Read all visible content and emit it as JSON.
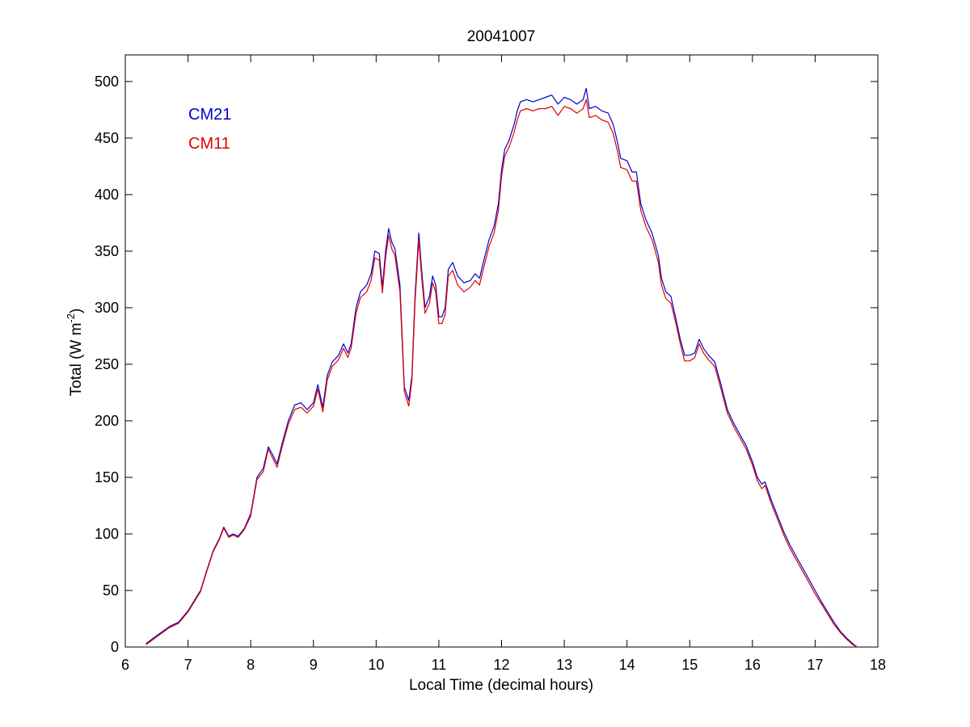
{
  "chart_data": {
    "type": "line",
    "title": "20041007",
    "xlabel": "Local Time (decimal hours)",
    "ylabel_main": "Total (W m",
    "ylabel_sup": "-2",
    "ylabel_close": ")",
    "xlim": [
      6,
      18
    ],
    "ylim": [
      0,
      520
    ],
    "xticks": [
      6,
      7,
      8,
      9,
      10,
      11,
      12,
      13,
      14,
      15,
      16,
      17,
      18
    ],
    "yticks": [
      0,
      50,
      100,
      150,
      200,
      250,
      300,
      350,
      400,
      450,
      500
    ],
    "grid": false,
    "legend_position": "top-left",
    "series": [
      {
        "name": "CM21",
        "color": "#0000cc",
        "points": [
          [
            6.33,
            3
          ],
          [
            6.5,
            10
          ],
          [
            6.7,
            18
          ],
          [
            6.85,
            22
          ],
          [
            7.0,
            32
          ],
          [
            7.2,
            50
          ],
          [
            7.3,
            68
          ],
          [
            7.4,
            85
          ],
          [
            7.5,
            96
          ],
          [
            7.57,
            106
          ],
          [
            7.65,
            98
          ],
          [
            7.72,
            100
          ],
          [
            7.8,
            98
          ],
          [
            7.9,
            105
          ],
          [
            8.0,
            118
          ],
          [
            8.1,
            150
          ],
          [
            8.2,
            158
          ],
          [
            8.28,
            177
          ],
          [
            8.35,
            170
          ],
          [
            8.42,
            162
          ],
          [
            8.5,
            180
          ],
          [
            8.6,
            200
          ],
          [
            8.7,
            214
          ],
          [
            8.8,
            216
          ],
          [
            8.9,
            210
          ],
          [
            9.0,
            216
          ],
          [
            9.07,
            232
          ],
          [
            9.15,
            212
          ],
          [
            9.22,
            240
          ],
          [
            9.3,
            252
          ],
          [
            9.4,
            258
          ],
          [
            9.48,
            268
          ],
          [
            9.55,
            260
          ],
          [
            9.6,
            268
          ],
          [
            9.68,
            300
          ],
          [
            9.75,
            314
          ],
          [
            9.85,
            320
          ],
          [
            9.92,
            330
          ],
          [
            9.98,
            350
          ],
          [
            10.05,
            348
          ],
          [
            10.1,
            318
          ],
          [
            10.15,
            350
          ],
          [
            10.2,
            370
          ],
          [
            10.25,
            358
          ],
          [
            10.3,
            352
          ],
          [
            10.38,
            320
          ],
          [
            10.45,
            230
          ],
          [
            10.52,
            218
          ],
          [
            10.57,
            240
          ],
          [
            10.62,
            310
          ],
          [
            10.68,
            366
          ],
          [
            10.73,
            330
          ],
          [
            10.78,
            300
          ],
          [
            10.85,
            310
          ],
          [
            10.9,
            328
          ],
          [
            10.95,
            320
          ],
          [
            11.0,
            292
          ],
          [
            11.05,
            292
          ],
          [
            11.1,
            300
          ],
          [
            11.15,
            334
          ],
          [
            11.22,
            340
          ],
          [
            11.3,
            328
          ],
          [
            11.4,
            322
          ],
          [
            11.5,
            324
          ],
          [
            11.58,
            330
          ],
          [
            11.65,
            326
          ],
          [
            11.7,
            338
          ],
          [
            11.8,
            360
          ],
          [
            11.88,
            372
          ],
          [
            11.95,
            392
          ],
          [
            12.0,
            422
          ],
          [
            12.05,
            440
          ],
          [
            12.12,
            448
          ],
          [
            12.2,
            462
          ],
          [
            12.25,
            474
          ],
          [
            12.3,
            482
          ],
          [
            12.4,
            484
          ],
          [
            12.5,
            482
          ],
          [
            12.6,
            484
          ],
          [
            12.7,
            486
          ],
          [
            12.8,
            488
          ],
          [
            12.9,
            480
          ],
          [
            13.0,
            486
          ],
          [
            13.1,
            484
          ],
          [
            13.2,
            480
          ],
          [
            13.3,
            484
          ],
          [
            13.35,
            494
          ],
          [
            13.4,
            476
          ],
          [
            13.5,
            478
          ],
          [
            13.6,
            474
          ],
          [
            13.7,
            472
          ],
          [
            13.78,
            462
          ],
          [
            13.85,
            446
          ],
          [
            13.9,
            432
          ],
          [
            14.0,
            430
          ],
          [
            14.08,
            420
          ],
          [
            14.15,
            420
          ],
          [
            14.22,
            392
          ],
          [
            14.3,
            378
          ],
          [
            14.4,
            366
          ],
          [
            14.5,
            346
          ],
          [
            14.55,
            326
          ],
          [
            14.62,
            314
          ],
          [
            14.7,
            310
          ],
          [
            14.78,
            290
          ],
          [
            14.85,
            272
          ],
          [
            14.92,
            258
          ],
          [
            15.0,
            258
          ],
          [
            15.08,
            260
          ],
          [
            15.15,
            272
          ],
          [
            15.22,
            264
          ],
          [
            15.3,
            258
          ],
          [
            15.4,
            252
          ],
          [
            15.5,
            232
          ],
          [
            15.6,
            210
          ],
          [
            15.7,
            198
          ],
          [
            15.8,
            188
          ],
          [
            15.9,
            178
          ],
          [
            16.0,
            164
          ],
          [
            16.08,
            150
          ],
          [
            16.15,
            144
          ],
          [
            16.2,
            146
          ],
          [
            16.3,
            130
          ],
          [
            16.4,
            116
          ],
          [
            16.5,
            102
          ],
          [
            16.6,
            90
          ],
          [
            16.7,
            80
          ],
          [
            16.8,
            70
          ],
          [
            16.9,
            60
          ],
          [
            17.0,
            50
          ],
          [
            17.1,
            40
          ],
          [
            17.2,
            31
          ],
          [
            17.3,
            22
          ],
          [
            17.4,
            14
          ],
          [
            17.5,
            8
          ],
          [
            17.6,
            3
          ],
          [
            17.67,
            0
          ]
        ]
      },
      {
        "name": "CM11",
        "color": "#e00000",
        "points": [
          [
            6.33,
            2
          ],
          [
            6.5,
            9
          ],
          [
            6.7,
            17
          ],
          [
            6.85,
            21
          ],
          [
            7.0,
            31
          ],
          [
            7.2,
            49
          ],
          [
            7.3,
            67
          ],
          [
            7.4,
            84
          ],
          [
            7.5,
            95
          ],
          [
            7.57,
            105
          ],
          [
            7.65,
            97
          ],
          [
            7.72,
            99
          ],
          [
            7.8,
            97
          ],
          [
            7.9,
            104
          ],
          [
            8.0,
            116
          ],
          [
            8.1,
            148
          ],
          [
            8.2,
            155
          ],
          [
            8.28,
            175
          ],
          [
            8.35,
            167
          ],
          [
            8.42,
            159
          ],
          [
            8.5,
            177
          ],
          [
            8.6,
            197
          ],
          [
            8.7,
            210
          ],
          [
            8.8,
            212
          ],
          [
            8.9,
            207
          ],
          [
            9.0,
            213
          ],
          [
            9.07,
            228
          ],
          [
            9.15,
            208
          ],
          [
            9.22,
            236
          ],
          [
            9.3,
            248
          ],
          [
            9.4,
            254
          ],
          [
            9.48,
            264
          ],
          [
            9.55,
            256
          ],
          [
            9.6,
            264
          ],
          [
            9.68,
            295
          ],
          [
            9.75,
            309
          ],
          [
            9.85,
            314
          ],
          [
            9.92,
            324
          ],
          [
            9.98,
            344
          ],
          [
            10.05,
            342
          ],
          [
            10.1,
            313
          ],
          [
            10.15,
            344
          ],
          [
            10.2,
            364
          ],
          [
            10.25,
            352
          ],
          [
            10.3,
            346
          ],
          [
            10.38,
            314
          ],
          [
            10.45,
            226
          ],
          [
            10.52,
            213
          ],
          [
            10.57,
            236
          ],
          [
            10.62,
            304
          ],
          [
            10.68,
            360
          ],
          [
            10.73,
            324
          ],
          [
            10.78,
            295
          ],
          [
            10.85,
            304
          ],
          [
            10.9,
            322
          ],
          [
            10.95,
            314
          ],
          [
            11.0,
            286
          ],
          [
            11.05,
            286
          ],
          [
            11.1,
            294
          ],
          [
            11.15,
            328
          ],
          [
            11.22,
            333
          ],
          [
            11.3,
            320
          ],
          [
            11.4,
            314
          ],
          [
            11.5,
            318
          ],
          [
            11.58,
            324
          ],
          [
            11.65,
            320
          ],
          [
            11.7,
            332
          ],
          [
            11.8,
            354
          ],
          [
            11.88,
            366
          ],
          [
            11.95,
            386
          ],
          [
            12.0,
            416
          ],
          [
            12.05,
            434
          ],
          [
            12.12,
            442
          ],
          [
            12.2,
            455
          ],
          [
            12.25,
            466
          ],
          [
            12.3,
            474
          ],
          [
            12.4,
            476
          ],
          [
            12.5,
            474
          ],
          [
            12.6,
            476
          ],
          [
            12.7,
            476
          ],
          [
            12.8,
            478
          ],
          [
            12.9,
            470
          ],
          [
            13.0,
            478
          ],
          [
            13.1,
            476
          ],
          [
            13.2,
            472
          ],
          [
            13.3,
            476
          ],
          [
            13.35,
            484
          ],
          [
            13.4,
            468
          ],
          [
            13.5,
            470
          ],
          [
            13.6,
            466
          ],
          [
            13.7,
            464
          ],
          [
            13.78,
            454
          ],
          [
            13.85,
            438
          ],
          [
            13.9,
            424
          ],
          [
            14.0,
            422
          ],
          [
            14.08,
            412
          ],
          [
            14.15,
            412
          ],
          [
            14.22,
            386
          ],
          [
            14.3,
            372
          ],
          [
            14.4,
            360
          ],
          [
            14.5,
            340
          ],
          [
            14.55,
            320
          ],
          [
            14.62,
            308
          ],
          [
            14.7,
            304
          ],
          [
            14.78,
            286
          ],
          [
            14.85,
            268
          ],
          [
            14.92,
            253
          ],
          [
            15.0,
            253
          ],
          [
            15.08,
            256
          ],
          [
            15.15,
            268
          ],
          [
            15.22,
            260
          ],
          [
            15.3,
            254
          ],
          [
            15.4,
            248
          ],
          [
            15.5,
            228
          ],
          [
            15.6,
            207
          ],
          [
            15.7,
            195
          ],
          [
            15.8,
            185
          ],
          [
            15.9,
            175
          ],
          [
            16.0,
            161
          ],
          [
            16.08,
            147
          ],
          [
            16.15,
            140
          ],
          [
            16.2,
            143
          ],
          [
            16.3,
            127
          ],
          [
            16.4,
            113
          ],
          [
            16.5,
            99
          ],
          [
            16.6,
            87
          ],
          [
            16.7,
            77
          ],
          [
            16.8,
            67
          ],
          [
            16.9,
            57
          ],
          [
            17.0,
            47
          ],
          [
            17.1,
            38
          ],
          [
            17.2,
            29
          ],
          [
            17.3,
            20
          ],
          [
            17.4,
            13
          ],
          [
            17.5,
            7
          ],
          [
            17.6,
            2
          ],
          [
            17.67,
            0
          ]
        ]
      }
    ]
  }
}
